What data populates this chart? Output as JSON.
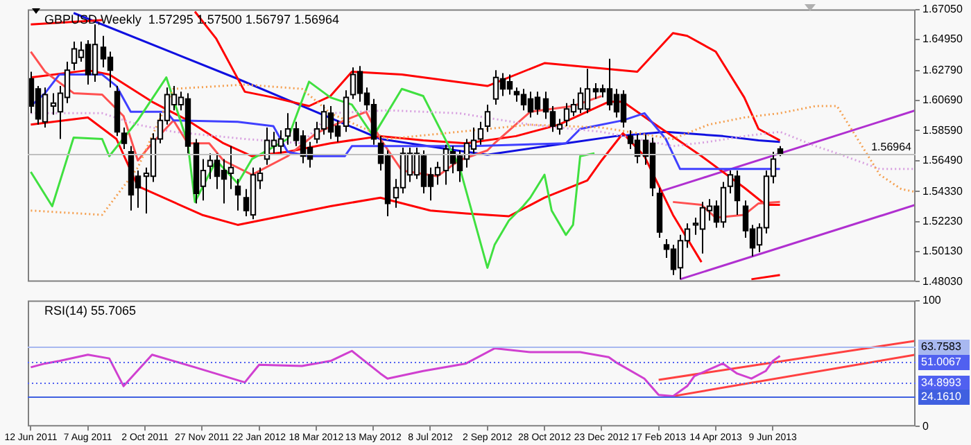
{
  "chart_data": [
    {
      "type": "candlestick",
      "title": "GBPUSD,Weekly  1.57295 1.57500 1.56797 1.56964",
      "tick_labels": "y",
      "marker": "none",
      "xlim": [
        "2011-06-09",
        "2013-10-27"
      ],
      "ylim": [
        1.4803,
        1.6705
      ],
      "yticks": [
        {
          "value": 1.6705,
          "label": "1.67050"
        },
        {
          "value": 1.6495,
          "label": "1.64950"
        },
        {
          "value": 1.6279,
          "label": "1.62790"
        },
        {
          "value": 1.6069,
          "label": "1.60690"
        },
        {
          "value": 1.5859,
          "label": "1.58590"
        },
        {
          "value": 1.5649,
          "label": "1.56490"
        },
        {
          "value": 1.5433,
          "label": "1.54330"
        },
        {
          "value": 1.5223,
          "label": "1.52230"
        },
        {
          "value": 1.5013,
          "label": "1.50130"
        },
        {
          "value": 1.4803,
          "label": "1.48030"
        }
      ],
      "x": [
        "2011-06-12",
        "2011-06-19",
        "2011-06-26",
        "2011-07-03",
        "2011-07-10",
        "2011-07-17",
        "2011-07-24",
        "2011-07-31",
        "2011-08-07",
        "2011-08-14",
        "2011-08-21",
        "2011-08-28",
        "2011-09-04",
        "2011-09-11",
        "2011-09-18",
        "2011-09-25",
        "2011-10-02",
        "2011-10-09",
        "2011-10-16",
        "2011-10-23",
        "2011-10-30",
        "2011-11-06",
        "2011-11-13",
        "2011-11-20",
        "2011-11-27",
        "2011-12-04",
        "2011-12-11",
        "2011-12-18",
        "2011-12-25",
        "2012-01-01",
        "2012-01-08",
        "2012-01-15",
        "2012-01-22",
        "2012-01-29",
        "2012-02-05",
        "2012-02-12",
        "2012-02-19",
        "2012-02-26",
        "2012-03-04",
        "2012-03-11",
        "2012-03-18",
        "2012-03-25",
        "2012-04-01",
        "2012-04-08",
        "2012-04-15",
        "2012-04-22",
        "2012-04-29",
        "2012-05-06",
        "2012-05-13",
        "2012-05-20",
        "2012-05-27",
        "2012-06-03",
        "2012-06-10",
        "2012-06-17",
        "2012-06-24",
        "2012-07-01",
        "2012-07-08",
        "2012-07-15",
        "2012-07-22",
        "2012-07-29",
        "2012-08-05",
        "2012-08-12",
        "2012-08-19",
        "2012-08-26",
        "2012-09-02",
        "2012-09-09",
        "2012-09-16",
        "2012-09-23",
        "2012-09-30",
        "2012-10-07",
        "2012-10-14",
        "2012-10-21",
        "2012-10-28",
        "2012-11-04",
        "2012-11-11",
        "2012-11-18",
        "2012-11-25",
        "2012-12-02",
        "2012-12-09",
        "2012-12-16",
        "2012-12-23",
        "2012-12-30",
        "2013-01-06",
        "2013-01-13",
        "2013-01-20",
        "2013-01-27",
        "2013-02-03",
        "2013-02-10",
        "2013-02-17",
        "2013-02-24",
        "2013-03-03",
        "2013-03-10",
        "2013-03-17",
        "2013-03-24",
        "2013-03-31",
        "2013-04-07",
        "2013-04-14",
        "2013-04-21",
        "2013-04-28",
        "2013-05-05",
        "2013-05-12",
        "2013-05-19",
        "2013-05-26",
        "2013-06-02",
        "2013-06-09",
        "2013-06-16"
      ],
      "ohlc": [
        [
          1.622,
          1.627,
          1.598,
          1.603
        ],
        [
          1.615,
          1.617,
          1.59,
          1.594
        ],
        [
          1.592,
          1.616,
          1.588,
          1.611
        ],
        [
          1.603,
          1.612,
          1.597,
          1.605
        ],
        [
          1.599,
          1.617,
          1.58,
          1.612
        ],
        [
          1.609,
          1.634,
          1.605,
          1.628
        ],
        [
          1.633,
          1.648,
          1.628,
          1.643
        ],
        [
          1.637,
          1.648,
          1.634,
          1.642
        ],
        [
          1.646,
          1.649,
          1.618,
          1.625
        ],
        [
          1.625,
          1.66,
          1.62,
          1.646
        ],
        [
          1.644,
          1.652,
          1.63,
          1.636
        ],
        [
          1.637,
          1.641,
          1.616,
          1.628
        ],
        [
          1.613,
          1.617,
          1.582,
          1.585
        ],
        [
          1.584,
          1.588,
          1.573,
          1.577
        ],
        [
          1.571,
          1.575,
          1.53,
          1.541
        ],
        [
          1.554,
          1.558,
          1.532,
          1.546
        ],
        [
          1.554,
          1.56,
          1.528,
          1.556
        ],
        [
          1.554,
          1.584,
          1.55,
          1.58
        ],
        [
          1.58,
          1.598,
          1.577,
          1.593
        ],
        [
          1.593,
          1.616,
          1.59,
          1.611
        ],
        [
          1.604,
          1.617,
          1.6,
          1.611
        ],
        [
          1.604,
          1.613,
          1.6,
          1.609
        ],
        [
          1.608,
          1.612,
          1.57,
          1.575
        ],
        [
          1.577,
          1.58,
          1.535,
          1.542
        ],
        [
          1.547,
          1.566,
          1.537,
          1.558
        ],
        [
          1.561,
          1.57,
          1.552,
          1.565
        ],
        [
          1.565,
          1.57,
          1.545,
          1.554
        ],
        [
          1.558,
          1.566,
          1.535,
          1.552
        ],
        [
          1.556,
          1.575,
          1.545,
          1.56
        ],
        [
          1.547,
          1.552,
          1.53,
          1.541
        ],
        [
          1.539,
          1.545,
          1.526,
          1.53
        ],
        [
          1.527,
          1.56,
          1.524,
          1.555
        ],
        [
          1.551,
          1.56,
          1.545,
          1.556
        ],
        [
          1.566,
          1.588,
          1.562,
          1.579
        ],
        [
          1.575,
          1.585,
          1.57,
          1.579
        ],
        [
          1.575,
          1.586,
          1.57,
          1.58
        ],
        [
          1.582,
          1.598,
          1.576,
          1.587
        ],
        [
          1.587,
          1.592,
          1.575,
          1.579
        ],
        [
          1.582,
          1.586,
          1.563,
          1.568
        ],
        [
          1.574,
          1.578,
          1.56,
          1.566
        ],
        [
          1.58,
          1.592,
          1.577,
          1.587
        ],
        [
          1.587,
          1.604,
          1.583,
          1.599
        ],
        [
          1.598,
          1.603,
          1.58,
          1.585
        ],
        [
          1.589,
          1.593,
          1.578,
          1.582
        ],
        [
          1.589,
          1.614,
          1.585,
          1.609
        ],
        [
          1.611,
          1.63,
          1.608,
          1.625
        ],
        [
          1.627,
          1.631,
          1.606,
          1.612
        ],
        [
          1.612,
          1.616,
          1.6,
          1.604
        ],
        [
          1.604,
          1.608,
          1.576,
          1.58
        ],
        [
          1.577,
          1.582,
          1.558,
          1.563
        ],
        [
          1.568,
          1.572,
          1.526,
          1.535
        ],
        [
          1.539,
          1.552,
          1.532,
          1.546
        ],
        [
          1.546,
          1.574,
          1.542,
          1.57
        ],
        [
          1.555,
          1.574,
          1.55,
          1.57
        ],
        [
          1.555,
          1.574,
          1.552,
          1.57
        ],
        [
          1.568,
          1.572,
          1.542,
          1.547
        ],
        [
          1.555,
          1.56,
          1.537,
          1.547
        ],
        [
          1.555,
          1.564,
          1.548,
          1.56
        ],
        [
          1.558,
          1.576,
          1.548,
          1.573
        ],
        [
          1.571,
          1.575,
          1.556,
          1.563
        ],
        [
          1.568,
          1.572,
          1.55,
          1.558
        ],
        [
          1.566,
          1.58,
          1.56,
          1.577
        ],
        [
          1.573,
          1.588,
          1.57,
          1.579
        ],
        [
          1.58,
          1.592,
          1.576,
          1.587
        ],
        [
          1.589,
          1.604,
          1.585,
          1.599
        ],
        [
          1.608,
          1.628,
          1.604,
          1.623
        ],
        [
          1.622,
          1.626,
          1.61,
          1.615
        ],
        [
          1.62,
          1.625,
          1.611,
          1.615
        ],
        [
          1.613,
          1.616,
          1.606,
          1.611
        ],
        [
          1.611,
          1.615,
          1.6,
          1.604
        ],
        [
          1.608,
          1.613,
          1.595,
          1.599
        ],
        [
          1.609,
          1.613,
          1.597,
          1.601
        ],
        [
          1.608,
          1.613,
          1.594,
          1.599
        ],
        [
          1.599,
          1.603,
          1.585,
          1.589
        ],
        [
          1.587,
          1.594,
          1.583,
          1.59
        ],
        [
          1.593,
          1.605,
          1.589,
          1.601
        ],
        [
          1.599,
          1.608,
          1.596,
          1.604
        ],
        [
          1.601,
          1.616,
          1.598,
          1.612
        ],
        [
          1.601,
          1.629,
          1.598,
          1.615
        ],
        [
          1.615,
          1.619,
          1.608,
          1.613
        ],
        [
          1.615,
          1.618,
          1.609,
          1.613
        ],
        [
          1.615,
          1.636,
          1.6,
          1.604
        ],
        [
          1.611,
          1.615,
          1.595,
          1.599
        ],
        [
          1.611,
          1.614,
          1.588,
          1.592
        ],
        [
          1.582,
          1.586,
          1.573,
          1.577
        ],
        [
          1.579,
          1.583,
          1.563,
          1.568
        ],
        [
          1.579,
          1.583,
          1.562,
          1.568
        ],
        [
          1.577,
          1.581,
          1.54,
          1.546
        ],
        [
          1.542,
          1.546,
          1.511,
          1.515
        ],
        [
          1.506,
          1.51,
          1.497,
          1.503
        ],
        [
          1.503,
          1.506,
          1.485,
          1.489
        ],
        [
          1.49,
          1.513,
          1.482,
          1.509
        ],
        [
          1.509,
          1.521,
          1.504,
          1.517
        ],
        [
          1.52,
          1.525,
          1.513,
          1.521
        ],
        [
          1.517,
          1.536,
          1.5,
          1.532
        ],
        [
          1.53,
          1.538,
          1.523,
          1.533
        ],
        [
          1.533,
          1.537,
          1.518,
          1.522
        ],
        [
          1.522,
          1.55,
          1.518,
          1.546
        ],
        [
          1.547,
          1.558,
          1.542,
          1.555
        ],
        [
          1.554,
          1.558,
          1.527,
          1.537
        ],
        [
          1.533,
          1.537,
          1.511,
          1.516
        ],
        [
          1.517,
          1.52,
          1.498,
          1.504
        ],
        [
          1.506,
          1.521,
          1.501,
          1.518
        ],
        [
          1.518,
          1.558,
          1.514,
          1.554
        ],
        [
          1.554,
          1.571,
          1.549,
          1.566
        ],
        [
          1.57295,
          1.575,
          1.56797,
          1.56964
        ]
      ],
      "series": [
        {
          "type": "line",
          "color": "#f5a050",
          "line_style": "dotted",
          "x": [
            "2011-06-12",
            "2011-08-21",
            "2011-09-25",
            "2011-10-30",
            "2012-01-08",
            "2012-03-04",
            "2012-04-01",
            "2012-05-27",
            "2012-08-05",
            "2012-10-14",
            "2012-12-23",
            "2013-03-03",
            "2013-04-07",
            "2013-05-12",
            "2013-06-16",
            "2013-07-21",
            "2013-08-11",
            "2013-09-22",
            "2013-10-13",
            "2013-10-27"
          ],
          "values": [
            1.53,
            1.527,
            1.56,
            1.615,
            1.618,
            1.615,
            1.598,
            1.58,
            1.585,
            1.59,
            1.588,
            1.58,
            1.59,
            1.595,
            1.598,
            1.603,
            1.603,
            1.555,
            1.545,
            1.543
          ]
        },
        {
          "type": "line",
          "color": "#d8a0e0",
          "line_style": "dotted",
          "x": [
            "2011-06-12",
            "2011-08-21",
            "2011-09-25",
            "2011-10-30",
            "2012-01-08",
            "2012-03-04",
            "2012-04-01",
            "2012-05-27",
            "2012-08-05",
            "2012-10-14",
            "2012-12-23",
            "2013-03-03",
            "2013-04-07",
            "2013-05-12",
            "2013-06-16",
            "2013-07-21",
            "2013-08-11",
            "2013-09-22",
            "2013-10-13",
            "2013-10-27"
          ],
          "values": [
            1.598,
            1.598,
            1.59,
            1.585,
            1.58,
            1.577,
            1.598,
            1.6,
            1.598,
            1.59,
            1.585,
            1.575,
            1.578,
            1.582,
            1.585,
            1.575,
            1.57,
            1.559,
            1.559,
            1.559
          ]
        },
        {
          "type": "line",
          "color": "#40e040",
          "x": [
            "2011-06-12",
            "2011-07-03",
            "2011-07-24",
            "2011-08-21",
            "2011-08-28",
            "2011-09-25",
            "2011-10-23",
            "2011-11-13",
            "2011-11-20",
            "2011-12-11",
            "2012-01-01",
            "2012-01-15",
            "2012-02-19",
            "2012-03-11",
            "2012-04-01",
            "2012-04-22",
            "2012-05-13",
            "2012-06-10",
            "2012-07-01",
            "2012-07-29",
            "2012-08-05",
            "2012-09-02",
            "2012-09-09",
            "2012-09-23",
            "2012-10-07",
            "2012-10-14",
            "2012-10-28",
            "2012-11-04",
            "2012-11-18",
            "2012-11-25",
            "2012-12-02",
            "2012-12-16"
          ],
          "values": [
            1.557,
            1.533,
            1.581,
            1.58,
            1.568,
            1.593,
            1.623,
            1.577,
            1.536,
            1.565,
            1.549,
            1.566,
            1.58,
            1.62,
            1.609,
            1.604,
            1.582,
            1.615,
            1.61,
            1.571,
            1.562,
            1.49,
            1.506,
            1.523,
            1.533,
            1.539,
            1.555,
            1.53,
            1.513,
            1.52,
            1.568,
            1.57
          ]
        },
        {
          "type": "line",
          "color": "#4040ff",
          "x": [
            "2011-06-12",
            "2011-06-26",
            "2011-07-10",
            "2011-08-21",
            "2011-09-04",
            "2011-09-18",
            "2011-10-23",
            "2011-10-30",
            "2012-01-01",
            "2012-02-05",
            "2012-02-19",
            "2012-03-11",
            "2012-04-15",
            "2012-04-22",
            "2012-08-19",
            "2012-11-18",
            "2012-12-02",
            "2013-01-13",
            "2013-02-03",
            "2013-02-24",
            "2013-03-10",
            "2013-06-16"
          ],
          "values": [
            1.603,
            1.612,
            1.625,
            1.625,
            1.617,
            1.599,
            1.599,
            1.593,
            1.592,
            1.589,
            1.571,
            1.568,
            1.568,
            1.575,
            1.575,
            1.577,
            1.587,
            1.593,
            1.598,
            1.58,
            1.559,
            1.559
          ]
        },
        {
          "type": "line",
          "color": "#ff5050",
          "x": [
            "2011-06-12",
            "2011-06-26",
            "2011-07-24",
            "2011-08-21",
            "2011-09-11",
            "2011-09-25",
            "2011-10-09",
            "2011-10-30",
            "2011-11-13",
            "2011-12-04",
            "2011-12-18",
            "2012-01-15",
            "2012-02-19",
            "2012-03-18",
            "2012-04-15",
            "2012-05-06",
            "2012-05-20",
            "2012-06-10",
            "2012-07-15",
            "2012-08-05",
            "2012-09-02",
            "2012-09-09",
            "2012-10-14",
            "2012-11-25",
            "2012-12-23",
            "2013-01-13",
            "2013-02-10",
            "2013-03-03",
            "2013-03-31",
            "2013-04-14",
            "2013-05-12",
            "2013-05-26",
            "2013-06-16"
          ],
          "values": [
            1.641,
            1.627,
            1.612,
            1.611,
            1.596,
            1.565,
            1.577,
            1.593,
            1.577,
            1.577,
            1.565,
            1.555,
            1.568,
            1.584,
            1.593,
            1.599,
            1.58,
            1.558,
            1.554,
            1.565,
            1.572,
            1.577,
            1.599,
            1.603,
            1.61,
            null,
            null,
            1.536,
            1.534,
            1.525,
            1.527,
            1.535,
            1.536
          ]
        },
        {
          "type": "line",
          "color": "#ff0000",
          "x": [
            "2011-06-12",
            "2011-08-21",
            "2011-08-28",
            "2011-11-20",
            "2011-12-11",
            "2012-01-08",
            "2012-02-05",
            "2012-03-11",
            "2012-04-01",
            "2012-04-22",
            "2012-06-10",
            "2012-09-02",
            "2012-10-28",
            "2013-01-27",
            "2013-03-03",
            "2013-03-17",
            "2013-04-14",
            "2013-05-12",
            "2013-05-26",
            "2013-06-16"
          ],
          "values": [
            1.66,
            1.663,
            null,
            1.669,
            1.65,
            1.613,
            1.609,
            1.603,
            1.61,
            1.627,
            1.625,
            1.617,
            1.633,
            1.627,
            1.654,
            1.652,
            1.641,
            1.609,
            1.587,
            1.579
          ]
        },
        {
          "type": "line",
          "color": "#ff0000",
          "x": [
            "2011-06-12",
            "2011-08-07",
            "2011-08-28",
            "2011-10-09",
            "2011-11-13",
            "2011-12-18",
            "2012-01-15",
            "2012-02-19",
            "2012-04-01",
            "2012-05-20",
            "2012-07-01",
            "2012-08-12",
            "2012-09-30",
            "2012-11-11",
            "2012-12-30",
            "2013-01-13",
            "2013-02-10",
            "2013-03-31",
            "2013-05-12",
            "2013-06-02",
            "2013-06-16"
          ],
          "values": [
            1.623,
            1.628,
            1.625,
            1.606,
            1.593,
            1.577,
            1.568,
            1.571,
            1.577,
            1.582,
            1.579,
            1.577,
            1.582,
            1.59,
            1.606,
            1.606,
            1.592,
            1.568,
            1.546,
            1.534,
            1.534
          ]
        },
        {
          "type": "line",
          "color": "#ff0000",
          "x": [
            "2011-06-12",
            "2011-08-07",
            "2011-09-04",
            "2011-09-25",
            "2011-11-27",
            "2012-01-01",
            "2012-02-19",
            "2012-04-01",
            "2012-05-20",
            "2012-07-08",
            "2012-08-12",
            "2012-09-23",
            "2012-10-28",
            "2012-12-09",
            "2012-12-23",
            "2013-01-13",
            "2013-02-03",
            "2013-03-03",
            "2013-03-31",
            "2013-04-07",
            "2013-05-19",
            "2013-06-16"
          ],
          "values": [
            1.59,
            1.595,
            1.58,
            1.547,
            1.527,
            1.52,
            1.527,
            1.533,
            1.539,
            1.53,
            1.528,
            1.526,
            1.539,
            1.551,
            1.565,
            1.584,
            1.568,
            1.527,
            1.494,
            null,
            1.482,
            1.485
          ]
        },
        {
          "type": "line",
          "color": "#1010e0",
          "x": [
            "2011-07-24",
            "2012-01-01",
            "2012-05-20",
            "2012-08-12",
            "2012-09-02",
            "2012-11-18",
            "2013-01-06",
            "2013-02-24",
            "2013-04-21",
            "2013-05-26",
            "2013-06-16"
          ],
          "values": [
            1.668,
            1.622,
            1.58,
            1.571,
            1.569,
            1.577,
            1.582,
            1.585,
            1.582,
            1.579,
            1.578
          ]
        },
        {
          "type": "line",
          "color": "#b030d0",
          "x": [
            "2013-02-17",
            "2013-10-27"
          ],
          "values": [
            1.543,
            1.6
          ]
        },
        {
          "type": "line",
          "color": "#b030d0",
          "x": [
            "2013-03-10",
            "2013-10-27"
          ],
          "values": [
            1.482,
            1.534
          ]
        }
      ],
      "ref_lines": [
        {
          "axis": "y",
          "value": 1.56964,
          "label": "1.56964",
          "color": "#c0c0c0"
        }
      ]
    },
    {
      "type": "line",
      "title": "RSI(14) 55.7065",
      "marker": "none",
      "xlim": [
        "2011-06-09",
        "2013-10-27"
      ],
      "xticks": [
        {
          "value": "2011-06-12",
          "label": "12 Jun 2011"
        },
        {
          "value": "2011-08-07",
          "label": "7 Aug 2011"
        },
        {
          "value": "2011-10-02",
          "label": "2 Oct 2011"
        },
        {
          "value": "2011-11-27",
          "label": "27 Nov 2011"
        },
        {
          "value": "2012-01-22",
          "label": "22 Jan 2012"
        },
        {
          "value": "2012-03-18",
          "label": "18 Mar 2012"
        },
        {
          "value": "2012-05-13",
          "label": "13 May 2012"
        },
        {
          "value": "2012-07-08",
          "label": "8 Jul 2012"
        },
        {
          "value": "2012-09-02",
          "label": "2 Sep 2012"
        },
        {
          "value": "2012-10-28",
          "label": "28 Oct 2012"
        },
        {
          "value": "2012-12-23",
          "label": "23 Dec 2012"
        },
        {
          "value": "2013-02-17",
          "label": "17 Feb 2013"
        },
        {
          "value": "2013-04-14",
          "label": "14 Apr 2013"
        },
        {
          "value": "2013-06-09",
          "label": "9 Jun 2013"
        }
      ],
      "ylim": [
        0,
        100
      ],
      "yticks": [
        0,
        100
      ],
      "series": [
        {
          "color": "#d040d0",
          "x": [
            "2011-06-12",
            "2011-06-26",
            "2011-07-10",
            "2011-08-07",
            "2011-08-28",
            "2011-09-11",
            "2011-10-09",
            "2011-11-20",
            "2012-01-08",
            "2012-01-22",
            "2012-03-04",
            "2012-04-01",
            "2012-04-22",
            "2012-05-20",
            "2012-05-27",
            "2012-07-01",
            "2012-08-12",
            "2012-09-09",
            "2012-10-14",
            "2012-12-02",
            "2012-12-30",
            "2013-01-06",
            "2013-02-03",
            "2013-02-17",
            "2013-03-03",
            "2013-03-17",
            "2013-03-24",
            "2013-04-21",
            "2013-05-05",
            "2013-05-19",
            "2013-06-02",
            "2013-06-09",
            "2013-06-16"
          ],
          "values": [
            47,
            50,
            52,
            57,
            54,
            32,
            57,
            47,
            35,
            49,
            48,
            52,
            60,
            42,
            38,
            44,
            50,
            62,
            59,
            59,
            55,
            51,
            38,
            25,
            24,
            32,
            40,
            50,
            42,
            38,
            44,
            52,
            56
          ]
        },
        {
          "color": "#ff4040",
          "x": [
            "2013-02-17",
            "2013-10-27"
          ],
          "values": [
            37,
            68
          ]
        },
        {
          "color": "#ff4040",
          "x": [
            "2013-03-03",
            "2013-10-27"
          ],
          "values": [
            24,
            57
          ]
        }
      ],
      "ref_lines": [
        {
          "axis": "y",
          "value": 63.7583,
          "label": "63.7583",
          "color": "#a8b8f0"
        },
        {
          "axis": "y",
          "value": 51.0067,
          "label": "51.0067",
          "color": "#5060f0",
          "line_style": "dotted"
        },
        {
          "axis": "y",
          "value": 34.8993,
          "label": "34.8993",
          "color": "#5060f0",
          "line_style": "dotted"
        },
        {
          "axis": "y",
          "value": 24.161,
          "label": "24.1610",
          "color": "#4060e0"
        }
      ]
    }
  ]
}
